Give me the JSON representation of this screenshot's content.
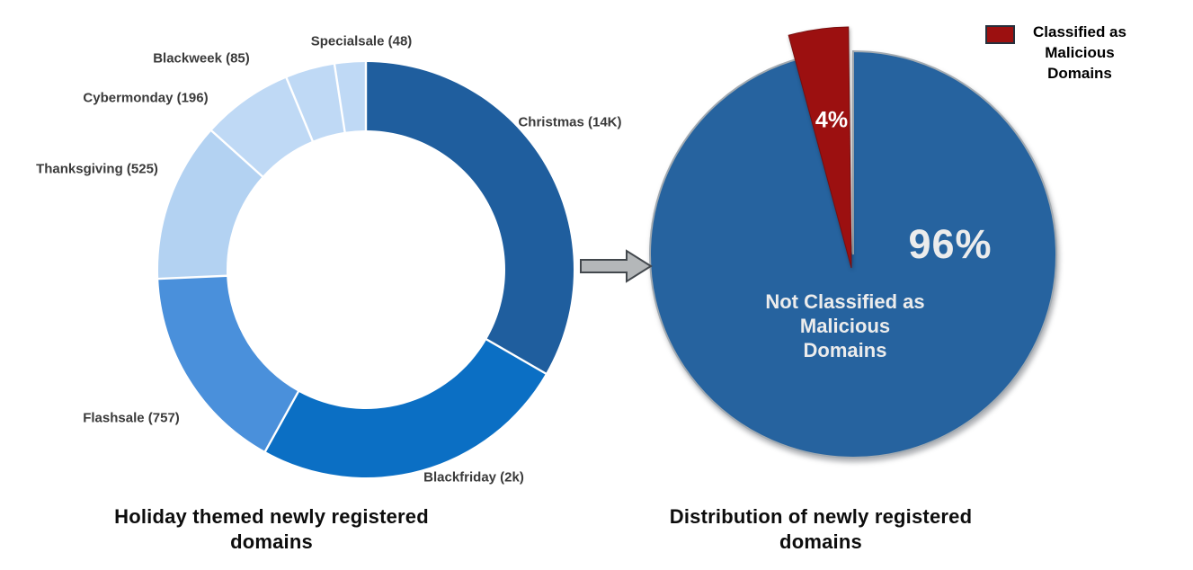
{
  "chart_data": [
    {
      "type": "pie",
      "variant": "donut",
      "title": "Holiday themed newly registered domains",
      "title_lines": [
        "Holiday themed newly registered",
        "domains"
      ],
      "legend_position": "none",
      "labels_outside": true,
      "slices": [
        {
          "name": "Christmas",
          "label": "Christmas (14K)",
          "value": 14000,
          "display_value": "14K",
          "color": "#1F5E9E",
          "start_angle": 0,
          "end_angle": 120
        },
        {
          "name": "Blackfriday",
          "label": "Blackfriday (2k)",
          "value": 2000,
          "display_value": "2k",
          "color": "#0B6FC4",
          "start_angle": 120,
          "end_angle": 209
        },
        {
          "name": "Flashsale",
          "label": "Flashsale (757)",
          "value": 757,
          "display_value": "757",
          "color": "#4A90DB",
          "start_angle": 209,
          "end_angle": 267.5
        },
        {
          "name": "Thanksgiving",
          "label": "Thanksgiving (525)",
          "value": 525,
          "display_value": "525",
          "color": "#B3D2F2",
          "start_angle": 267.5,
          "end_angle": 312
        },
        {
          "name": "Cybermonday",
          "label": "Cybermonday (196)",
          "value": 196,
          "display_value": "196",
          "color": "#BFD9F5",
          "start_angle": 312,
          "end_angle": 337.5
        },
        {
          "name": "Blackweek",
          "label": "Blackweek (85)",
          "value": 85,
          "display_value": "85",
          "color": "#BFD9F5",
          "start_angle": 337.5,
          "end_angle": 351.3
        },
        {
          "name": "Specialsale",
          "label": "Specialsale (48)",
          "value": 48,
          "display_value": "48",
          "color": "#BFD9F5",
          "start_angle": 351.3,
          "end_angle": 360
        }
      ]
    },
    {
      "type": "pie",
      "title": "Distribution of newly registered domains",
      "title_lines": [
        "Distribution of newly registered",
        "domains"
      ],
      "slices": [
        {
          "name": "not-classified-malicious",
          "label": "Not Classified as Malicious Domains",
          "inner_label_lines": [
            "Not Classified as",
            "Malicious",
            "Domains"
          ],
          "pct": 96,
          "display": "96%",
          "color": "#26639F",
          "start_angle": 0,
          "end_angle": 345.6,
          "exploded": false
        },
        {
          "name": "classified-malicious",
          "label": "Classified as Malicious Domains",
          "pct": 4,
          "display": "4%",
          "color": "#9C1010",
          "start_angle": 345.6,
          "end_angle": 360,
          "exploded": true
        }
      ],
      "legend": {
        "position": "top-right",
        "swatch_color": "#9C1010",
        "lines": [
          "Classified as",
          "Malicious",
          "Domains"
        ]
      }
    }
  ],
  "arrow": {
    "direction": "right",
    "meaning": "flow from left chart to right chart"
  }
}
